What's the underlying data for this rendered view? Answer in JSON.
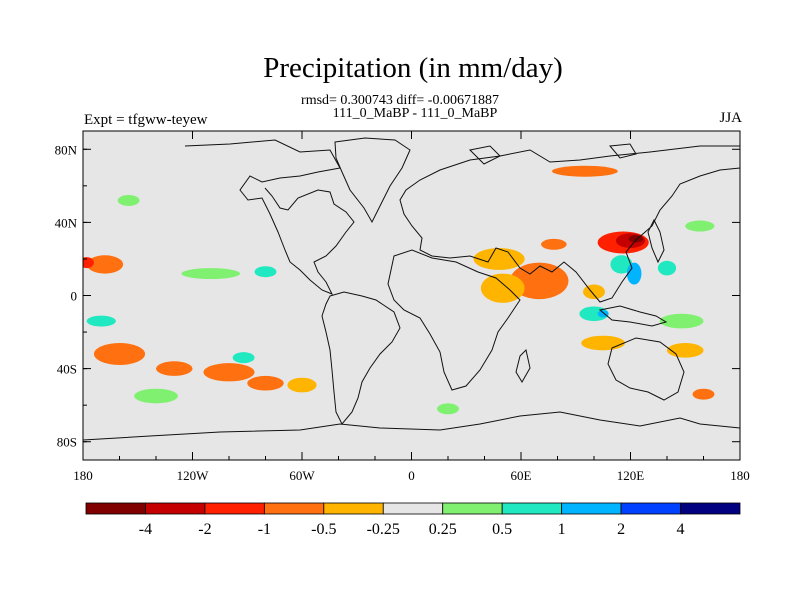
{
  "header": {
    "title": "Precipitation (in mm/day)",
    "stats": "rmsd= 0.300743  diff= -0.00671887",
    "case": "111_0_MaBP - 111_0_MaBP",
    "expt": "Expt = tfgww-teyew",
    "season": "JJA"
  },
  "chart_data": {
    "type": "heatmap",
    "title": "Precipitation (in mm/day)",
    "subtitle": "rmsd= 0.300743  diff= -0.00671887",
    "xlabel": "",
    "ylabel": "",
    "xlim": [
      -180,
      180
    ],
    "ylim": [
      -90,
      90
    ],
    "x_ticks": [
      {
        "value": -180,
        "label": "180"
      },
      {
        "value": -120,
        "label": "120W"
      },
      {
        "value": -60,
        "label": "60W"
      },
      {
        "value": 0,
        "label": "0"
      },
      {
        "value": 60,
        "label": "60E"
      },
      {
        "value": 120,
        "label": "120E"
      },
      {
        "value": 180,
        "label": "180"
      }
    ],
    "y_ticks": [
      {
        "value": 80,
        "label": "80N"
      },
      {
        "value": 40,
        "label": "40N"
      },
      {
        "value": 0,
        "label": "0"
      },
      {
        "value": -40,
        "label": "40S"
      },
      {
        "value": -80,
        "label": "80S"
      }
    ],
    "colorbar": {
      "colors": [
        "#800000",
        "#c40000",
        "#ff2000",
        "#ff7010",
        "#ffb400",
        "#e6e6e6",
        "#80f070",
        "#20e8c0",
        "#00b4ff",
        "#0040ff",
        "#000080"
      ],
      "labels": [
        "-4",
        "-2",
        "-1",
        "-0.5",
        "-0.25",
        "0.25",
        "0.5",
        "1",
        "2",
        "4"
      ]
    },
    "regions": [
      {
        "lon": 78,
        "lat": 28,
        "rlon": 7,
        "rlat": 3,
        "level": 3
      },
      {
        "lon": 116,
        "lat": 29,
        "rlon": 14,
        "rlat": 6,
        "level": 2
      },
      {
        "lon": 120,
        "lat": 30,
        "rlon": 8,
        "rlat": 4,
        "level": 1
      },
      {
        "lon": 123,
        "lat": 31,
        "rlon": 4,
        "rlat": 2,
        "level": 0
      },
      {
        "lon": 70,
        "lat": 8,
        "rlon": 16,
        "rlat": 10,
        "level": 3
      },
      {
        "lon": 48,
        "lat": 20,
        "rlon": 14,
        "rlat": 6,
        "level": 4
      },
      {
        "lon": 50,
        "lat": 4,
        "rlon": 12,
        "rlat": 8,
        "level": 4
      },
      {
        "lon": 100,
        "lat": 2,
        "rlon": 6,
        "rlat": 4,
        "level": 4
      },
      {
        "lon": 115,
        "lat": 17,
        "rlon": 6,
        "rlat": 5,
        "level": 7
      },
      {
        "lon": 122,
        "lat": 12,
        "rlon": 4,
        "rlat": 6,
        "level": 8
      },
      {
        "lon": 140,
        "lat": 15,
        "rlon": 5,
        "rlat": 4,
        "level": 7
      },
      {
        "lon": 100,
        "lat": -10,
        "rlon": 8,
        "rlat": 4,
        "level": 7
      },
      {
        "lon": 105,
        "lat": -10,
        "rlon": 3,
        "rlat": 2,
        "level": 8
      },
      {
        "lon": 148,
        "lat": -14,
        "rlon": 12,
        "rlat": 4,
        "level": 6
      },
      {
        "lon": 105,
        "lat": -26,
        "rlon": 12,
        "rlat": 4,
        "level": 4
      },
      {
        "lon": 150,
        "lat": -30,
        "rlon": 10,
        "rlat": 4,
        "level": 4
      },
      {
        "lon": 160,
        "lat": -54,
        "rlon": 6,
        "rlat": 3,
        "level": 3
      },
      {
        "lon": -168,
        "lat": 17,
        "rlon": 10,
        "rlat": 5,
        "level": 3
      },
      {
        "lon": -178,
        "lat": 18,
        "rlon": 4,
        "rlat": 3,
        "level": 2
      },
      {
        "lon": -110,
        "lat": 12,
        "rlon": 16,
        "rlat": 3,
        "level": 6
      },
      {
        "lon": -80,
        "lat": 13,
        "rlon": 6,
        "rlat": 3,
        "level": 7
      },
      {
        "lon": -170,
        "lat": -14,
        "rlon": 8,
        "rlat": 3,
        "level": 7
      },
      {
        "lon": -160,
        "lat": -32,
        "rlon": 14,
        "rlat": 6,
        "level": 3
      },
      {
        "lon": -130,
        "lat": -40,
        "rlon": 10,
        "rlat": 4,
        "level": 3
      },
      {
        "lon": -100,
        "lat": -42,
        "rlon": 14,
        "rlat": 5,
        "level": 3
      },
      {
        "lon": -80,
        "lat": -48,
        "rlon": 10,
        "rlat": 4,
        "level": 3
      },
      {
        "lon": -60,
        "lat": -49,
        "rlon": 8,
        "rlat": 4,
        "level": 4
      },
      {
        "lon": -140,
        "lat": -55,
        "rlon": 12,
        "rlat": 4,
        "level": 6
      },
      {
        "lon": -92,
        "lat": -34,
        "rlon": 6,
        "rlat": 3,
        "level": 7
      },
      {
        "lon": 95,
        "lat": 68,
        "rlon": 18,
        "rlat": 3,
        "level": 3
      },
      {
        "lon": 158,
        "lat": 38,
        "rlon": 8,
        "rlat": 3,
        "level": 6
      },
      {
        "lon": 20,
        "lat": -62,
        "rlon": 6,
        "rlat": 3,
        "level": 6
      },
      {
        "lon": -155,
        "lat": 52,
        "rlon": 6,
        "rlat": 3,
        "level": 6
      }
    ]
  }
}
